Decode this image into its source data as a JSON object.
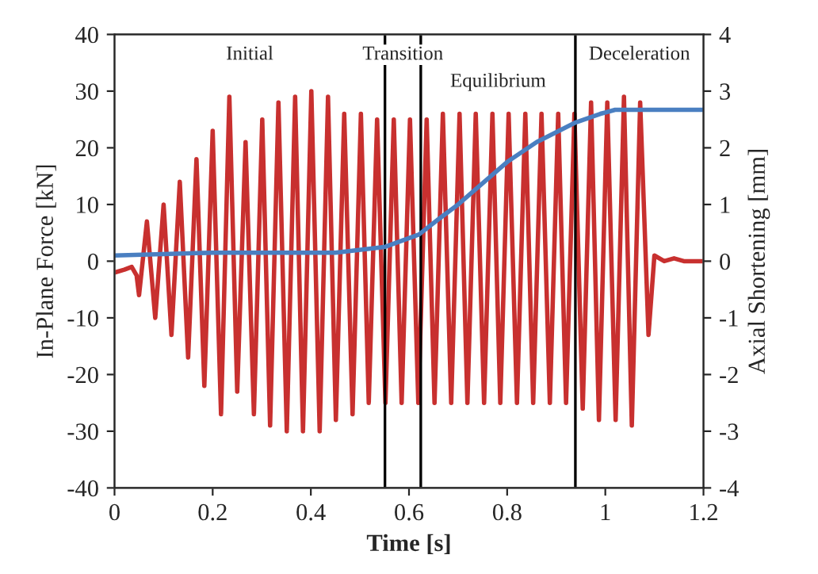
{
  "chart_data": {
    "type": "line",
    "xlabel": "Time [s]",
    "ylabel": "In-Plane Force [kN]",
    "y2label": "Axial Shortening [mm]",
    "series": [
      {
        "color": "#c8302f",
        "x": [
          0,
          0.02,
          0.035,
          0.045,
          0.05,
          0.066,
          0.083,
          0.1,
          0.116,
          0.133,
          0.15,
          0.167,
          0.183,
          0.2,
          0.217,
          0.234,
          0.25,
          0.267,
          0.284,
          0.301,
          0.317,
          0.334,
          0.351,
          0.368,
          0.384,
          0.401,
          0.418,
          0.435,
          0.451,
          0.468,
          0.485,
          0.502,
          0.518,
          0.535,
          0.552,
          0.569,
          0.585,
          0.602,
          0.619,
          0.636,
          0.652,
          0.669,
          0.686,
          0.703,
          0.719,
          0.736,
          0.753,
          0.77,
          0.786,
          0.803,
          0.82,
          0.837,
          0.853,
          0.87,
          0.887,
          0.904,
          0.92,
          0.937,
          0.954,
          0.971,
          0.987,
          1.004,
          1.021,
          1.038,
          1.054,
          1.071,
          1.088,
          1.1,
          1.12,
          1.14,
          1.16,
          1.2
        ],
        "values": [
          -2,
          -1.5,
          -1,
          -2.5,
          -6,
          7,
          -10,
          10,
          -13,
          14,
          -17,
          18,
          -22,
          23,
          -27,
          29,
          -23,
          21,
          -27,
          25,
          -29,
          28,
          -30,
          29,
          -30,
          30,
          -30,
          29,
          -28,
          26,
          -27,
          26,
          -25,
          25,
          -25,
          25,
          -25,
          25,
          -25,
          25,
          -25,
          26,
          -25,
          26,
          -25,
          26,
          -25,
          26,
          -25,
          26,
          -25,
          26,
          -25,
          26,
          -25,
          26,
          -25,
          26,
          -26,
          28,
          -28,
          28,
          -28,
          29,
          -29,
          28,
          -13,
          1,
          0,
          0.5,
          0,
          0
        ]
      },
      {
        "color": "#4a7fc1",
        "axis": "y2",
        "x": [
          0,
          0.2,
          0.45,
          0.55,
          0.62,
          0.66,
          0.7,
          0.8,
          0.86,
          0.94,
          0.99,
          1.02,
          1.2
        ],
        "values": [
          0.1,
          0.15,
          0.15,
          0.25,
          0.47,
          0.74,
          1.0,
          1.75,
          2.1,
          2.45,
          2.6,
          2.67,
          2.67
        ]
      }
    ],
    "xlim": [
      0,
      1.2
    ],
    "xticks": [
      0,
      0.2,
      0.4,
      0.6,
      0.8,
      1,
      1.2
    ],
    "ylim": [
      -40,
      40
    ],
    "yticks": [
      -40,
      -30,
      -20,
      -10,
      0,
      10,
      20,
      30,
      40
    ],
    "y2lim": [
      -4,
      4
    ],
    "y2ticks": [
      -4,
      -3,
      -2,
      -1,
      0,
      1,
      2,
      3,
      4
    ],
    "ref_lines": [
      {
        "axis": "x",
        "value": 0.551,
        "color": "#000000"
      },
      {
        "axis": "x",
        "value": 0.624,
        "color": "#000000"
      },
      {
        "axis": "x",
        "value": 0.939,
        "color": "#000000"
      }
    ],
    "annotations": [
      "Initial",
      "Transition",
      "Equilibrium",
      "Deceleration"
    ],
    "grid": false,
    "marker": "none",
    "line_style": "solid"
  }
}
